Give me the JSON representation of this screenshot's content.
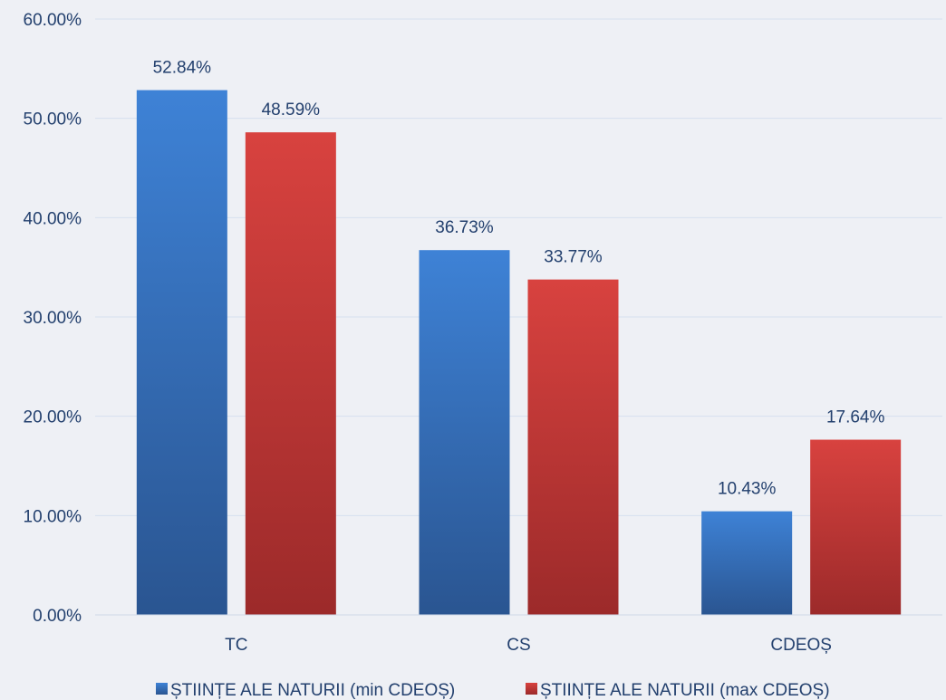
{
  "chart_data": {
    "type": "bar",
    "title": "",
    "xlabel": "",
    "ylabel": "",
    "categories": [
      "TC",
      "CS",
      "CDEOȘ"
    ],
    "series": [
      {
        "name": "ȘTIINȚE ALE NATURII (min CDEOȘ)",
        "values": [
          52.84,
          36.73,
          10.43
        ],
        "labels": [
          "52.84%",
          "36.73%",
          "10.43%"
        ],
        "color": "#3a7ccf"
      },
      {
        "name": "ȘTIINȚE ALE NATURII (max CDEOȘ)",
        "values": [
          48.59,
          33.77,
          17.64
        ],
        "labels": [
          "48.59%",
          "33.77%",
          "17.64%"
        ],
        "color": "#d03c3b"
      }
    ],
    "ylim": [
      0,
      60
    ],
    "yticks": [
      0,
      10,
      20,
      30,
      40,
      50,
      60
    ],
    "ytick_labels": [
      "0.00%",
      "10.00%",
      "20.00%",
      "30.00%",
      "40.00%",
      "50.00%",
      "60.00%"
    ],
    "grid": true,
    "legend_position": "bottom"
  }
}
